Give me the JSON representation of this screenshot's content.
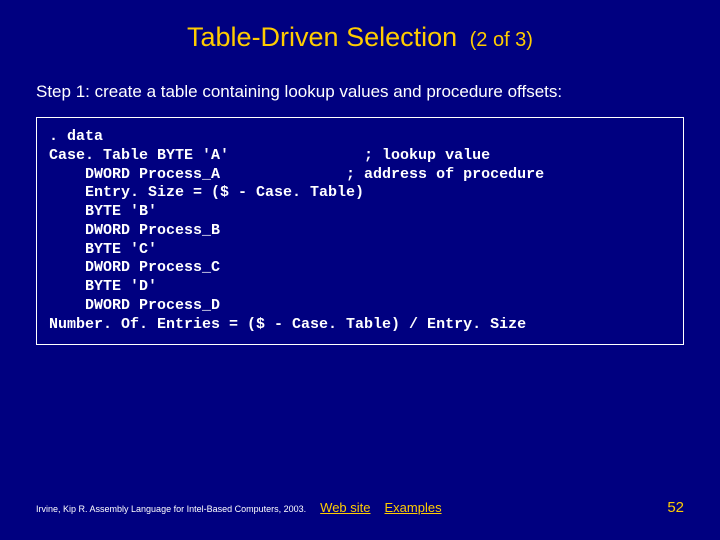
{
  "title": "Table-Driven Selection",
  "title_suffix": "(2 of 3)",
  "subtitle": "Step 1: create a table containing lookup values and procedure offsets:",
  "code": {
    "lines": [
      ". data",
      "Case. Table BYTE 'A'               ; lookup value",
      "    DWORD Process_A              ; address of procedure",
      "    Entry. Size = ($ - Case. Table)",
      "    BYTE 'B'",
      "    DWORD Process_B",
      "    BYTE 'C'",
      "    DWORD Process_C",
      "    BYTE 'D'",
      "    DWORD Process_D",
      "",
      "Number. Of. Entries = ($ - Case. Table) / Entry. Size"
    ]
  },
  "footer": {
    "citation": "Irvine, Kip R. Assembly Language for Intel-Based Computers, 2003.",
    "web_link": "Web site",
    "examples_link": "Examples",
    "page_num": "52"
  },
  "colors": {
    "background": "#000080",
    "accent": "#ffcc00",
    "text": "#ffffff"
  }
}
